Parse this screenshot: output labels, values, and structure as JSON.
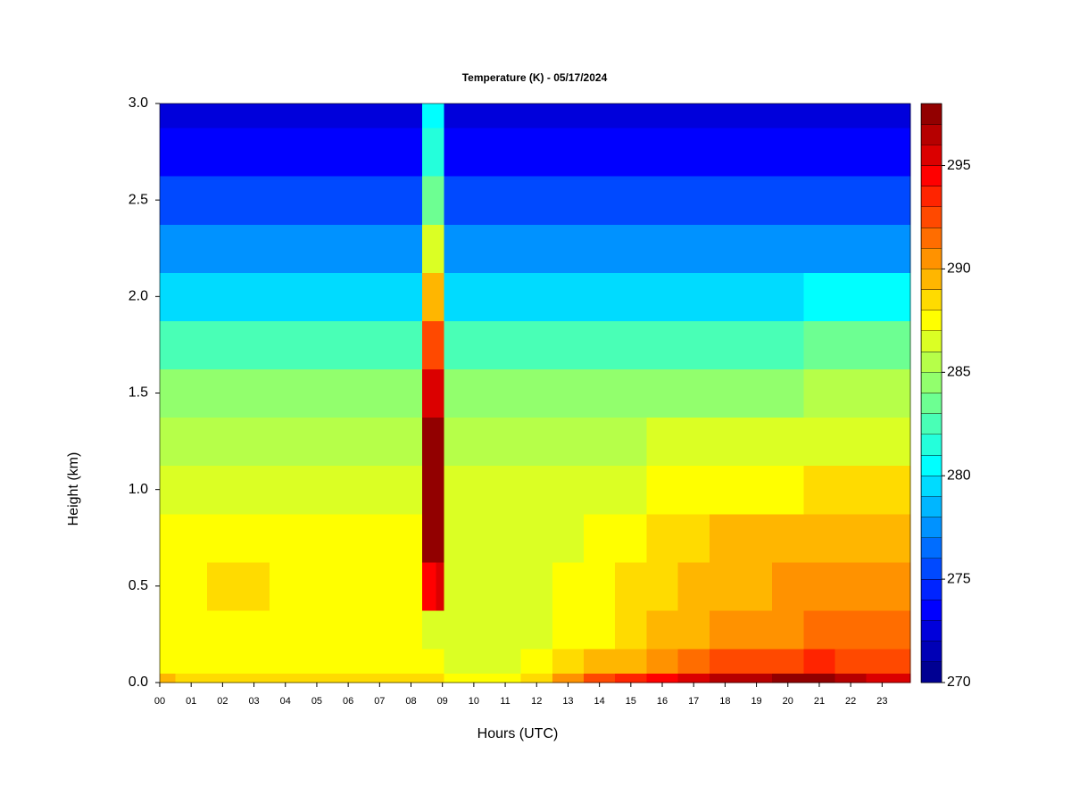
{
  "chart_data": {
    "type": "heatmap",
    "title": "Temperature (K) - 05/17/2024",
    "x_label": "Hours (UTC)",
    "y_label": "Height (km)",
    "colormap": "jet",
    "x": [
      0,
      1,
      2,
      3,
      4,
      5,
      6,
      7,
      8,
      8.7,
      8.9,
      9.2,
      10,
      11,
      12,
      13,
      14,
      15,
      16,
      17,
      18,
      19,
      20,
      21,
      22,
      23
    ],
    "y": [
      0,
      0.1,
      0.25,
      0.5,
      0.75,
      1.0,
      1.25,
      1.5,
      1.75,
      2.0,
      2.25,
      2.5,
      2.75,
      3.0
    ],
    "z": [
      [
        289,
        287.5,
        287.5,
        287.5,
        287,
        286,
        285.5,
        284.5,
        282,
        279,
        277,
        275,
        273,
        272
      ],
      [
        288.5,
        287.5,
        287.5,
        287.5,
        287,
        286,
        285.5,
        284.5,
        282,
        279,
        277,
        275,
        273.5,
        272.5
      ],
      [
        288.5,
        287.5,
        287.5,
        288,
        287.5,
        286,
        285.5,
        284.5,
        282,
        279,
        277,
        275,
        273.5,
        272.5
      ],
      [
        288.5,
        287.5,
        287.5,
        288,
        287.5,
        286,
        285.5,
        284.5,
        282,
        279,
        277,
        275,
        273.5,
        272.5
      ],
      [
        288.5,
        287.5,
        287.5,
        287.5,
        287,
        286,
        285.5,
        284.5,
        282,
        279,
        277,
        275,
        273.5,
        272.5
      ],
      [
        288.5,
        287.5,
        287.5,
        287.5,
        287,
        286,
        285.5,
        284.5,
        282,
        279,
        277,
        275,
        273.5,
        272.5
      ],
      [
        288,
        287.5,
        287,
        287,
        287,
        286,
        285.5,
        284.5,
        282,
        279,
        277,
        275,
        273.5,
        272.5
      ],
      [
        288,
        287.5,
        287,
        287,
        287,
        286,
        285.5,
        284.5,
        282,
        279,
        277,
        275,
        273.5,
        272.5
      ],
      [
        288,
        287.5,
        287,
        287,
        287,
        286,
        285.5,
        284.5,
        282,
        279,
        277,
        275,
        273.5,
        272.5
      ],
      [
        288,
        287,
        286,
        294,
        297,
        297.5,
        297,
        295,
        292,
        289,
        286,
        283,
        281,
        280
      ],
      [
        288,
        287,
        286.5,
        295,
        297.5,
        297.8,
        297,
        295.5,
        292.5,
        289.5,
        286,
        283,
        281,
        280
      ],
      [
        287.5,
        286.5,
        286.5,
        286.5,
        286.5,
        286,
        285.5,
        284.5,
        282,
        279,
        277,
        275,
        273.5,
        272.5
      ],
      [
        287.5,
        286.5,
        286.5,
        286.5,
        286.5,
        286,
        285.5,
        284.5,
        282,
        279,
        277,
        275,
        273.5,
        272.5
      ],
      [
        287.5,
        286.5,
        286.5,
        286.5,
        286.5,
        286,
        285.5,
        284.5,
        282,
        279,
        277,
        275,
        273.5,
        272.5
      ],
      [
        288.5,
        287,
        286.5,
        286.5,
        286.5,
        286,
        285.5,
        284.5,
        282,
        279,
        277,
        275,
        273.5,
        272.5
      ],
      [
        290,
        288,
        287,
        287,
        286.5,
        286,
        285.5,
        284.5,
        282,
        279,
        277,
        275,
        273.5,
        272.5
      ],
      [
        292,
        289,
        287.5,
        287.5,
        287,
        286.5,
        285.5,
        284.5,
        282,
        279,
        277,
        275,
        273.5,
        272.5
      ],
      [
        293,
        289.5,
        288,
        288,
        287.5,
        286.5,
        285.5,
        284.5,
        282,
        279,
        277,
        275,
        273.5,
        272.5
      ],
      [
        294,
        290,
        289,
        288.5,
        288,
        287,
        286,
        284.5,
        282,
        279,
        277,
        275,
        273.5,
        272.5
      ],
      [
        295,
        291,
        289.5,
        289,
        288.5,
        287,
        286,
        284.5,
        282.5,
        279.5,
        277,
        275,
        273.5,
        272.5
      ],
      [
        296,
        292,
        290,
        289.5,
        289,
        287.5,
        286,
        284.5,
        282.5,
        279.5,
        277,
        275,
        273.5,
        272.5
      ],
      [
        296,
        292,
        290,
        289.5,
        289,
        287.5,
        286,
        284.5,
        282.5,
        279.5,
        277,
        275,
        273.5,
        272.5
      ],
      [
        297,
        292.5,
        290.5,
        290,
        289,
        287.5,
        286,
        284.5,
        282.5,
        279.5,
        277,
        275,
        273.5,
        272.5
      ],
      [
        297,
        293,
        291,
        290,
        289.5,
        288,
        286.5,
        285,
        283,
        280,
        277.5,
        275,
        273.5,
        272.5
      ],
      [
        296,
        292,
        291,
        290.5,
        289.5,
        288,
        286.5,
        285,
        283,
        280,
        277.5,
        275,
        273,
        272
      ],
      [
        295,
        292,
        291,
        290.5,
        289.5,
        288,
        286.5,
        285,
        283,
        280,
        277.5,
        275,
        273.5,
        272.5
      ]
    ],
    "xlim": [
      0,
      23.9
    ],
    "ylim": [
      0,
      3
    ],
    "xticks": [
      {
        "value": 0,
        "label": "00"
      },
      {
        "value": 1,
        "label": "01"
      },
      {
        "value": 2,
        "label": "02"
      },
      {
        "value": 3,
        "label": "03"
      },
      {
        "value": 4,
        "label": "04"
      },
      {
        "value": 5,
        "label": "05"
      },
      {
        "value": 6,
        "label": "06"
      },
      {
        "value": 7,
        "label": "07"
      },
      {
        "value": 8,
        "label": "08"
      },
      {
        "value": 9,
        "label": "09"
      },
      10,
      11,
      12,
      13,
      14,
      15,
      16,
      17,
      18,
      19,
      20,
      21,
      22,
      23
    ],
    "yticks": [
      {
        "value": 0,
        "label": "0.0"
      },
      {
        "value": 0.5,
        "label": "0.5"
      },
      {
        "value": 1,
        "label": "1.0"
      },
      {
        "value": 1.5,
        "label": "1.5"
      },
      {
        "value": 2,
        "label": "2.0"
      },
      {
        "value": 2.5,
        "label": "2.5"
      },
      {
        "value": 3,
        "label": "3.0"
      }
    ],
    "zlim": [
      270,
      298
    ],
    "levels": [
      270,
      271,
      272,
      273,
      274,
      275,
      276,
      277,
      278,
      279,
      280,
      281,
      282,
      283,
      284,
      285,
      286,
      287,
      288,
      289,
      290,
      291,
      292,
      293,
      294,
      295,
      296,
      297,
      298
    ],
    "zticks": [
      270,
      275,
      280,
      285,
      290,
      295
    ]
  }
}
